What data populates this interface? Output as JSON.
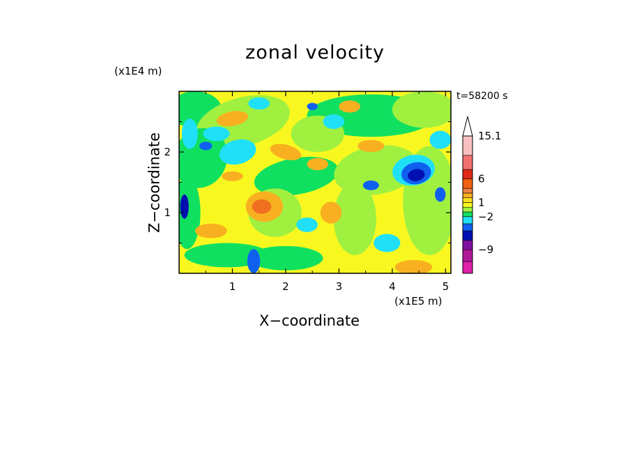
{
  "chart_data": {
    "type": "heatmap",
    "title": "zonal velocity",
    "xlabel": "X−coordinate",
    "ylabel": "Z−coordinate",
    "x_unit": "(x1E5 m)",
    "y_unit": "(x1E4 m)",
    "annotation": "t=58200 s",
    "xlim": [
      0,
      5.1
    ],
    "ylim": [
      0,
      3.0
    ],
    "xticks": [
      "1",
      "2",
      "3",
      "4",
      "5"
    ],
    "yticks": [
      "1",
      "2"
    ],
    "colorbar": {
      "levels": [
        -14,
        -11.5,
        -9,
        -7,
        -5,
        -3.5,
        -2,
        -1,
        0,
        1,
        2,
        3,
        4,
        6,
        8,
        11,
        15.1
      ],
      "labels": [
        "15.1",
        "6",
        "1",
        "−2",
        "−9"
      ],
      "colors": [
        "#e020a8",
        "#b01898",
        "#8010a0",
        "#0010b0",
        "#1060f0",
        "#20e0f8",
        "#10e060",
        "#a0f040",
        "#f8f820",
        "#f8e020",
        "#f8b020",
        "#f08040",
        "#f06010",
        "#e02818",
        "#f07070",
        "#f8c0c0"
      ],
      "overflow_color": "#ffffff"
    },
    "colors": {
      "red": "#f07020",
      "orange": "#f8b020",
      "yellow": "#f8f820",
      "lime": "#a0f040",
      "green": "#10e060",
      "cyan": "#20e0f8",
      "blue": "#1060f0",
      "navy": "#0010b0",
      "magenta": "#e020a8"
    },
    "grid": false,
    "legend_position": "right"
  }
}
